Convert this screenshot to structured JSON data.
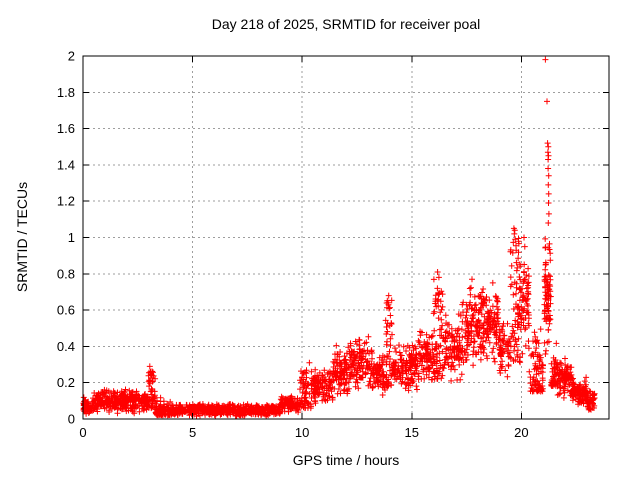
{
  "title": "Day 218 of 2025, SRMTID for receiver poal",
  "axes": {
    "xlabel": "GPS time / hours",
    "ylabel": "SRMTID / TECUs"
  },
  "colors": {
    "points": "#ff0000",
    "grid": "#9e9e9e",
    "border": "#000000",
    "background": "#ffffff",
    "text": "#000000"
  },
  "chart_data": {
    "type": "scatter",
    "title": "Day 218 of 2025, SRMTID for receiver poal",
    "xlabel": "GPS time / hours",
    "ylabel": "SRMTID / TECUs",
    "xlim": [
      0,
      24
    ],
    "ylim": [
      0,
      2
    ],
    "x_ticks": [
      0,
      5,
      10,
      15,
      20
    ],
    "y_tick_values": [
      0,
      0.2,
      0.4,
      0.6,
      0.8,
      1,
      1.2,
      1.4,
      1.6,
      1.8,
      2
    ],
    "y_tick_labels": [
      "0",
      "0.2",
      "0.4",
      "0.6",
      "0.8",
      "1",
      "1.2",
      "1.4",
      "1.6",
      "1.8",
      "2"
    ],
    "grid": true,
    "legend": "none",
    "marker": "plus",
    "marker_color": "#ff0000",
    "description": "Dense ~30s-cadence SRMTID scatter vs GPS time. Quiet band ~0.02-0.17 TECU from 0-9h (bump to ~0.29 at 3.1h), rising 0.1-0.45 band 10-14h, spike ~0.68 at 14h, 0.2-0.5 band 14-16h, spikes to ~0.8 at 16.2h and 17.3-18.1h, dense 0.3-0.75 at 18-19h, spike to ~1.05 at 19.6-19.9h, 0.35-0.9 at 20-20.3h, decline, then major spike at 21.1-21.3h reaching 2.0 (isolated 1.75, cluster 1.4-1.5, column 0.35-1.0), decaying tail to ~0.05-0.15 ending at 23.3h.",
    "density_segments": [
      [
        0.0,
        0.45,
        60,
        0.02,
        0.12,
        "band"
      ],
      [
        0.45,
        2.6,
        260,
        0.03,
        0.17,
        "band"
      ],
      [
        2.6,
        2.95,
        40,
        0.04,
        0.15,
        "band"
      ],
      [
        2.95,
        3.3,
        50,
        0.06,
        0.28,
        "col"
      ],
      [
        3.3,
        4.2,
        110,
        0.02,
        0.12,
        "low"
      ],
      [
        4.2,
        9.0,
        560,
        0.015,
        0.085,
        "band"
      ],
      [
        9.0,
        9.9,
        100,
        0.03,
        0.13,
        "band"
      ],
      [
        9.9,
        10.45,
        65,
        0.06,
        0.27,
        "col"
      ],
      [
        10.45,
        11.4,
        110,
        0.08,
        0.28,
        "band"
      ],
      [
        11.4,
        12.2,
        95,
        0.1,
        0.43,
        "band"
      ],
      [
        12.2,
        13.2,
        120,
        0.14,
        0.46,
        "band"
      ],
      [
        13.2,
        13.8,
        70,
        0.12,
        0.36,
        "band"
      ],
      [
        13.8,
        14.1,
        45,
        0.18,
        0.66,
        "col"
      ],
      [
        14.1,
        15.3,
        140,
        0.15,
        0.43,
        "band"
      ],
      [
        15.3,
        16.0,
        85,
        0.18,
        0.5,
        "band"
      ],
      [
        16.0,
        16.5,
        70,
        0.22,
        0.8,
        "col"
      ],
      [
        16.5,
        17.3,
        95,
        0.18,
        0.6,
        "band"
      ],
      [
        17.3,
        18.1,
        100,
        0.25,
        0.76,
        "band"
      ],
      [
        18.1,
        19.0,
        120,
        0.28,
        0.73,
        "band"
      ],
      [
        19.0,
        19.5,
        60,
        0.22,
        0.58,
        "band"
      ],
      [
        19.5,
        19.95,
        70,
        0.3,
        1.05,
        "col"
      ],
      [
        19.95,
        20.35,
        60,
        0.35,
        0.92,
        "band"
      ],
      [
        20.35,
        21.0,
        80,
        0.15,
        0.55,
        "low"
      ],
      [
        21.05,
        21.35,
        75,
        0.33,
        1.02,
        "band"
      ],
      [
        21.35,
        21.65,
        45,
        0.18,
        0.5,
        "low"
      ],
      [
        21.65,
        22.3,
        90,
        0.11,
        0.34,
        "band"
      ],
      [
        22.3,
        23.0,
        90,
        0.06,
        0.24,
        "band"
      ],
      [
        23.0,
        23.35,
        55,
        0.04,
        0.16,
        "band"
      ]
    ],
    "outlier_points": [
      [
        21.1,
        1.98
      ],
      [
        21.17,
        1.75
      ],
      [
        21.2,
        1.52
      ],
      [
        21.23,
        1.5
      ],
      [
        21.21,
        1.47
      ],
      [
        21.24,
        1.45
      ],
      [
        21.22,
        1.43
      ],
      [
        21.22,
        1.38
      ],
      [
        21.25,
        1.34
      ],
      [
        21.23,
        1.29
      ],
      [
        21.25,
        1.24
      ],
      [
        21.24,
        1.19
      ],
      [
        21.26,
        1.13
      ],
      [
        21.23,
        1.08
      ],
      [
        19.66,
        1.05
      ],
      [
        19.7,
        1.04
      ],
      [
        19.68,
        1.02
      ],
      [
        19.72,
        0.99
      ],
      [
        20.12,
        1.0
      ],
      [
        20.16,
        0.95
      ],
      [
        16.18,
        0.81
      ],
      [
        16.24,
        0.78
      ],
      [
        17.75,
        0.77
      ],
      [
        18.7,
        0.75
      ],
      [
        13.95,
        0.68
      ],
      [
        13.92,
        0.64
      ],
      [
        10.33,
        0.31
      ],
      [
        3.05,
        0.29
      ],
      [
        3.08,
        0.26
      ]
    ]
  }
}
